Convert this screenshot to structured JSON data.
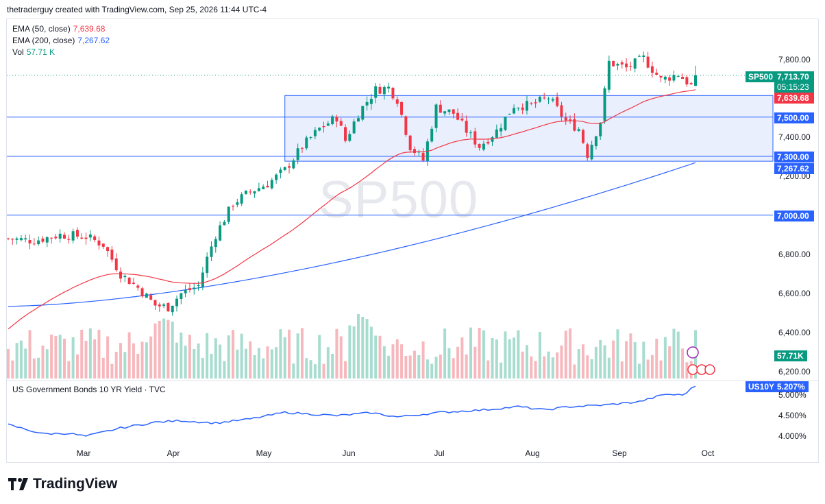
{
  "header": {
    "text": "thetraderguy created with TradingView.com, Sep 25, 2026 11:44 UTC-4"
  },
  "watermark": "SP500",
  "brand": {
    "name": "TradingView"
  },
  "legend": [
    {
      "label": "EMA (50, close)",
      "value": "7,639.68",
      "color": "#f23645"
    },
    {
      "label": "EMA (200, close)",
      "value": "7,267.62",
      "color": "#2962ff"
    },
    {
      "label": "Vol",
      "value": "57.71 K",
      "color": "#089981"
    }
  ],
  "price_axis": {
    "ticks": [
      "7,800.00",
      "7,400.00",
      "7,200.00",
      "6,800.00",
      "6,600.00",
      "6,400.00",
      "6,200.00"
    ]
  },
  "price_tags": {
    "symbol": "SP500",
    "last": "7,713.70",
    "countdown": "05:15:23",
    "ema50": "7,639.68",
    "level_7500": "7,500.00",
    "level_7300": "7,300.00",
    "ema200": "7,267.62",
    "level_7000": "7,000.00",
    "vol": "57.71K"
  },
  "lower_pane": {
    "title": "US Government Bonds 10 YR Yield · TVC",
    "symbol": "US10Y",
    "last": "5.207%",
    "ticks": [
      "5.000%",
      "4.500%",
      "4.000%"
    ]
  },
  "time_axis": [
    "Mar",
    "Apr",
    "May",
    "Jun",
    "Jul",
    "Aug",
    "Sep",
    "Oct"
  ],
  "colors": {
    "up": "#089981",
    "down": "#f23645",
    "ema50": "#f23645",
    "ema200": "#2962ff",
    "level": "#2962ff",
    "box_fill": "#e9effd",
    "yield": "#2962ff"
  },
  "chart_data": {
    "type": "candlestick",
    "symbol": "SP500",
    "y_range": [
      6150,
      7880
    ],
    "price_levels": [
      7500,
      7300,
      7000
    ],
    "range_box": {
      "start": "May 15",
      "end": "Sep 29",
      "top": 7610,
      "bottom": 7275
    },
    "monthly_closes": [
      {
        "month": "Feb",
        "close": 6880
      },
      {
        "month": "Mar",
        "close": 6650
      },
      {
        "month": "Apr",
        "close": 6950
      },
      {
        "month": "May",
        "close": 7560
      },
      {
        "month": "Jun",
        "close": 7460
      },
      {
        "month": "Jul",
        "close": 7480
      },
      {
        "month": "Aug",
        "close": 7700
      },
      {
        "month": "Sep",
        "close": 7713.7
      }
    ],
    "ema50_last": 7639.68,
    "ema200_last": 7267.62,
    "volume_last": "57.71K",
    "us10y_last": 5.207,
    "us10y_range": [
      3.9,
      5.25
    ]
  }
}
